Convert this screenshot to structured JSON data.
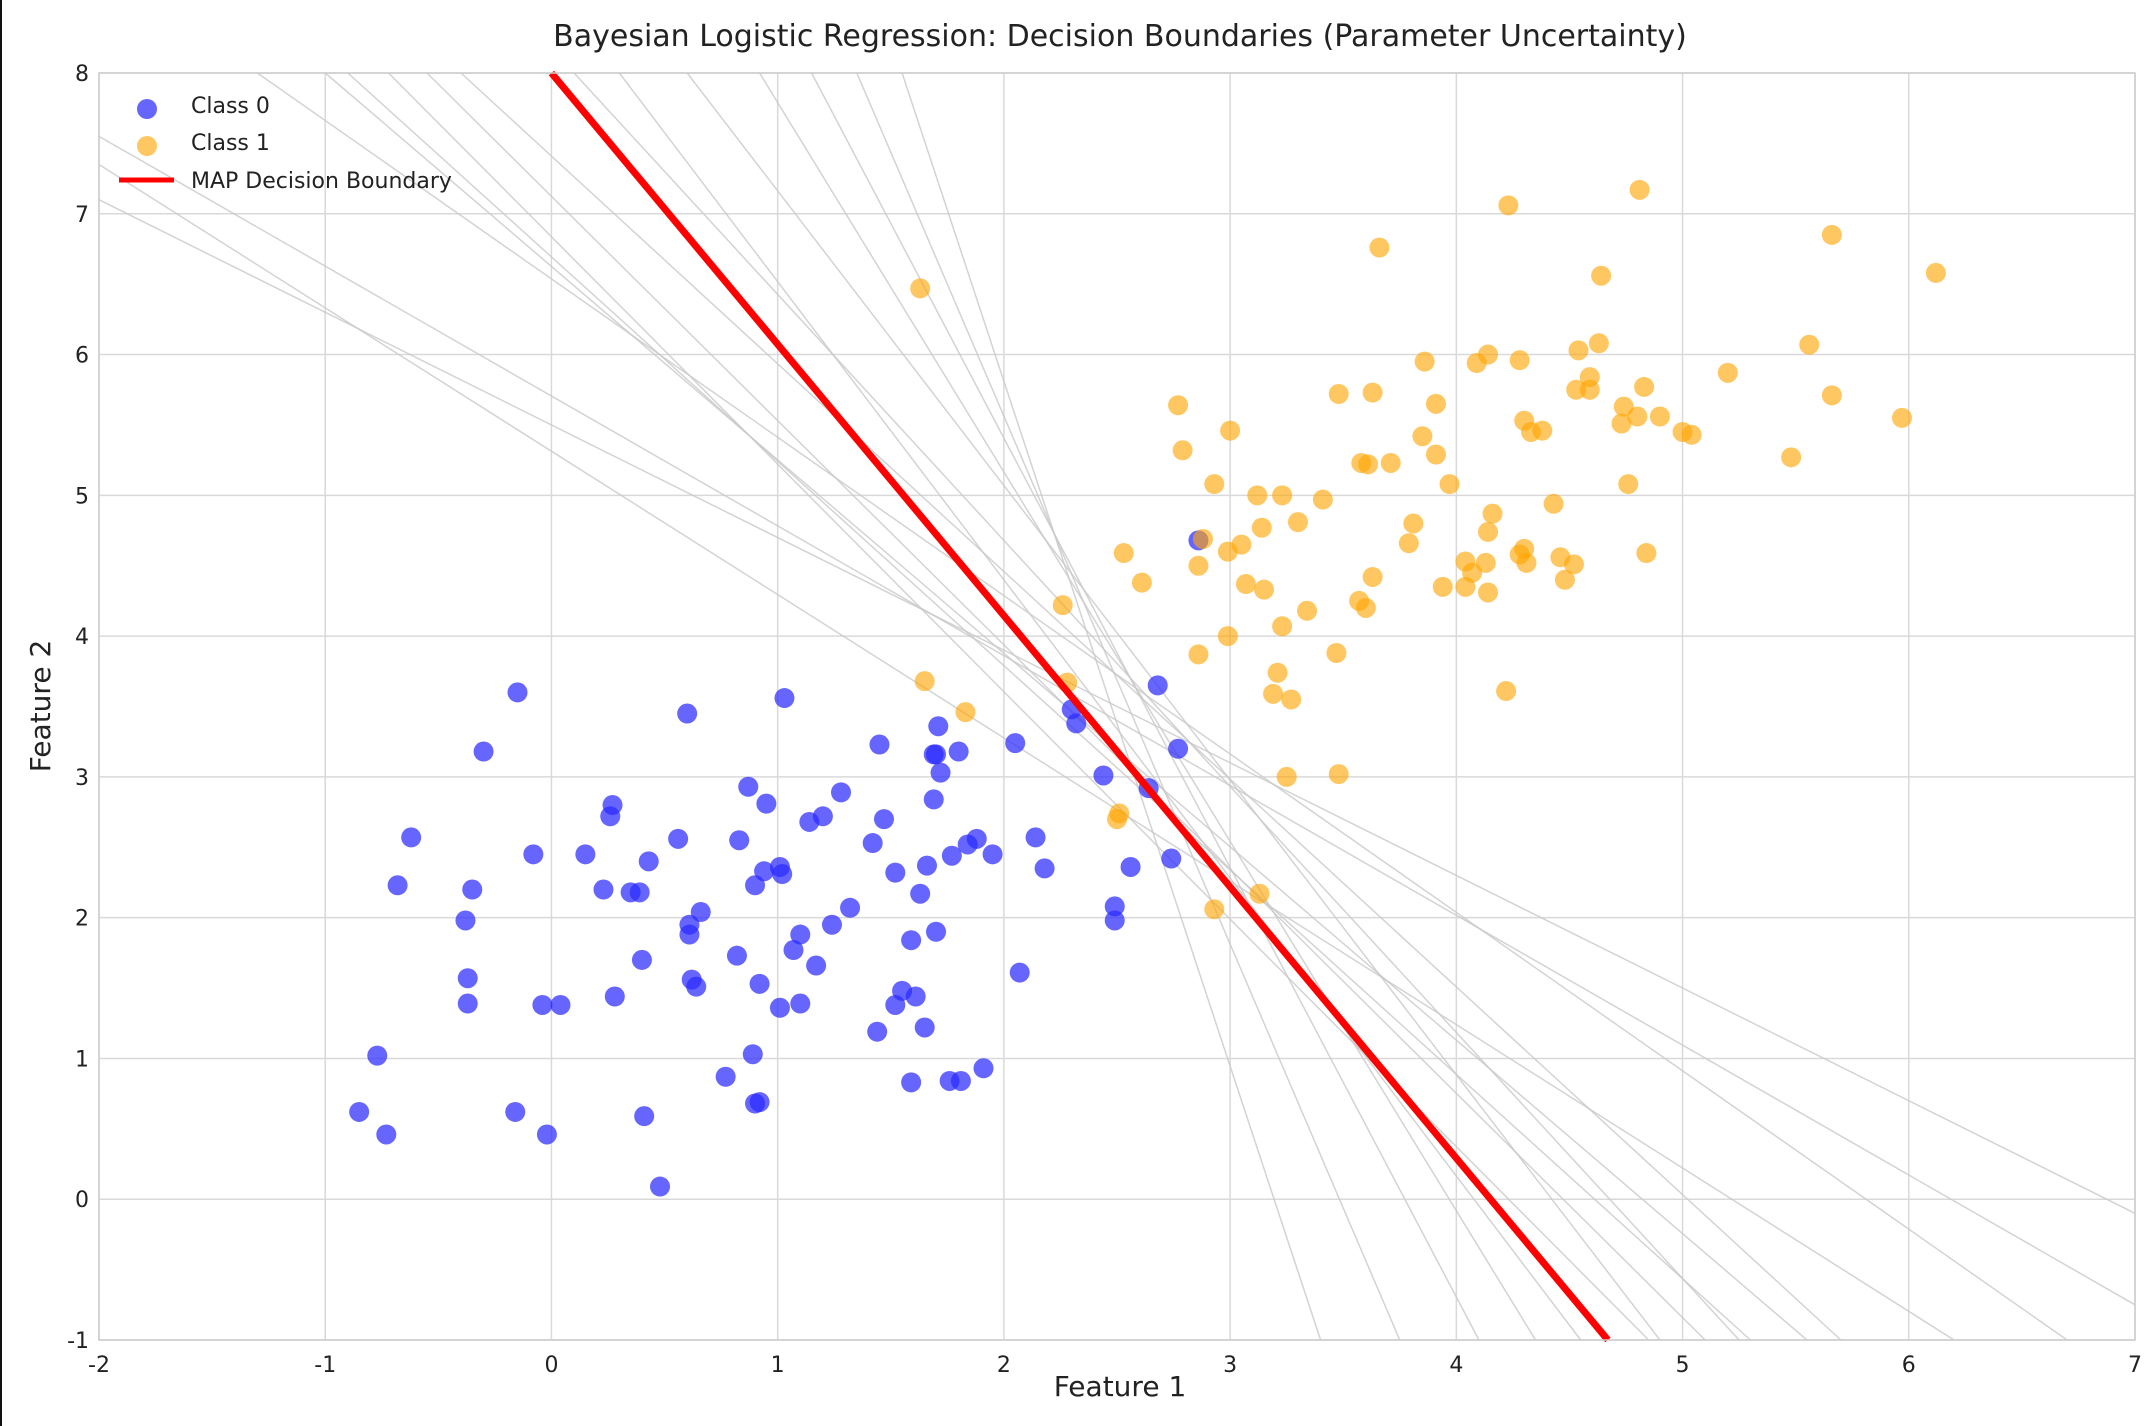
{
  "chart_data": {
    "type": "scatter",
    "title": "Bayesian Logistic Regression: Decision Boundaries (Parameter Uncertainty)",
    "xlabel": "Feature 1",
    "ylabel": "Feature 2",
    "xlim": [
      -2,
      7
    ],
    "ylim": [
      -1,
      8
    ],
    "xticks": [
      -2,
      -1,
      0,
      1,
      2,
      3,
      4,
      5,
      6,
      7
    ],
    "yticks": [
      -1,
      0,
      1,
      2,
      3,
      4,
      5,
      6,
      7,
      8
    ],
    "grid": true,
    "legend_position": "top-left",
    "colors": {
      "class0": "#2b2bff",
      "class1": "#ffa500",
      "map_boundary": "#ff0000",
      "sample_boundary": "#c8c8c8",
      "grid": "#d9d9d9"
    },
    "series": [
      {
        "name": "Class 0",
        "kind": "scatter",
        "points": [
          [
            -0.15,
            3.6
          ],
          [
            -0.3,
            3.18
          ],
          [
            0.6,
            3.45
          ],
          [
            1.03,
            3.56
          ],
          [
            -0.62,
            2.57
          ],
          [
            -0.68,
            2.23
          ],
          [
            -0.35,
            2.2
          ],
          [
            -0.38,
            1.98
          ],
          [
            -0.37,
            1.57
          ],
          [
            -0.37,
            1.39
          ],
          [
            -0.08,
            2.45
          ],
          [
            0.15,
            2.45
          ],
          [
            0.27,
            2.8
          ],
          [
            0.26,
            2.72
          ],
          [
            0.23,
            2.2
          ],
          [
            0.35,
            2.18
          ],
          [
            0.39,
            2.18
          ],
          [
            0.43,
            2.4
          ],
          [
            0.4,
            1.7
          ],
          [
            0.28,
            1.44
          ],
          [
            -0.04,
            1.38
          ],
          [
            0.04,
            1.38
          ],
          [
            -0.77,
            1.02
          ],
          [
            -0.85,
            0.62
          ],
          [
            -0.73,
            0.46
          ],
          [
            -0.16,
            0.62
          ],
          [
            -0.02,
            0.46
          ],
          [
            0.41,
            0.59
          ],
          [
            0.48,
            0.09
          ],
          [
            0.56,
            2.56
          ],
          [
            0.61,
            1.95
          ],
          [
            0.61,
            1.88
          ],
          [
            0.66,
            2.04
          ],
          [
            0.62,
            1.56
          ],
          [
            0.64,
            1.51
          ],
          [
            0.77,
            0.87
          ],
          [
            0.82,
            1.73
          ],
          [
            0.83,
            2.55
          ],
          [
            0.87,
            2.93
          ],
          [
            0.95,
            2.81
          ],
          [
            0.9,
            2.23
          ],
          [
            0.94,
            2.33
          ],
          [
            1.01,
            2.36
          ],
          [
            1.02,
            2.31
          ],
          [
            0.92,
            1.53
          ],
          [
            0.89,
            1.03
          ],
          [
            0.9,
            0.68
          ],
          [
            0.92,
            0.69
          ],
          [
            1.01,
            1.36
          ],
          [
            1.07,
            1.77
          ],
          [
            1.1,
            1.88
          ],
          [
            1.1,
            1.39
          ],
          [
            1.14,
            2.68
          ],
          [
            1.17,
            1.66
          ],
          [
            1.2,
            2.72
          ],
          [
            1.24,
            1.95
          ],
          [
            1.28,
            2.89
          ],
          [
            1.32,
            2.07
          ],
          [
            1.42,
            2.53
          ],
          [
            1.45,
            3.23
          ],
          [
            1.47,
            2.7
          ],
          [
            1.52,
            2.32
          ],
          [
            1.44,
            1.19
          ],
          [
            1.52,
            1.38
          ],
          [
            1.55,
            1.48
          ],
          [
            1.59,
            1.84
          ],
          [
            1.61,
            1.44
          ],
          [
            1.63,
            2.17
          ],
          [
            1.66,
            2.37
          ],
          [
            1.65,
            1.22
          ],
          [
            1.59,
            0.83
          ],
          [
            1.69,
            2.84
          ],
          [
            1.7,
            1.9
          ],
          [
            1.69,
            3.16
          ],
          [
            1.71,
            3.36
          ],
          [
            1.72,
            3.03
          ],
          [
            1.7,
            3.16
          ],
          [
            1.77,
            2.44
          ],
          [
            1.8,
            3.18
          ],
          [
            1.84,
            2.52
          ],
          [
            1.88,
            2.56
          ],
          [
            1.76,
            0.84
          ],
          [
            1.81,
            0.84
          ],
          [
            1.91,
            0.93
          ],
          [
            1.95,
            2.45
          ],
          [
            2.05,
            3.24
          ],
          [
            2.07,
            1.61
          ],
          [
            2.14,
            2.57
          ],
          [
            2.18,
            2.35
          ],
          [
            2.3,
            3.48
          ],
          [
            2.32,
            3.38
          ],
          [
            2.44,
            3.01
          ],
          [
            2.49,
            2.08
          ],
          [
            2.49,
            1.98
          ],
          [
            2.56,
            2.36
          ],
          [
            2.64,
            2.92
          ],
          [
            2.68,
            3.65
          ],
          [
            2.74,
            2.42
          ],
          [
            2.77,
            3.2
          ],
          [
            2.86,
            4.68
          ]
        ]
      },
      {
        "name": "Class 1",
        "kind": "scatter",
        "points": [
          [
            1.63,
            6.47
          ],
          [
            1.65,
            3.68
          ],
          [
            1.83,
            3.46
          ],
          [
            2.26,
            4.22
          ],
          [
            2.28,
            3.67
          ],
          [
            2.5,
            2.7
          ],
          [
            2.51,
            2.74
          ],
          [
            2.53,
            4.59
          ],
          [
            2.61,
            4.38
          ],
          [
            2.77,
            5.64
          ],
          [
            2.79,
            5.32
          ],
          [
            2.86,
            4.5
          ],
          [
            2.86,
            3.87
          ],
          [
            2.88,
            4.69
          ],
          [
            2.93,
            5.08
          ],
          [
            2.99,
            4.6
          ],
          [
            3.0,
            5.46
          ],
          [
            2.99,
            4.0
          ],
          [
            3.05,
            4.65
          ],
          [
            3.07,
            4.37
          ],
          [
            3.12,
            5.0
          ],
          [
            3.14,
            4.77
          ],
          [
            3.15,
            4.33
          ],
          [
            3.19,
            3.59
          ],
          [
            3.21,
            3.74
          ],
          [
            3.23,
            5.0
          ],
          [
            3.23,
            4.07
          ],
          [
            3.25,
            3.0
          ],
          [
            3.27,
            3.55
          ],
          [
            3.3,
            4.81
          ],
          [
            3.34,
            4.18
          ],
          [
            3.41,
            4.97
          ],
          [
            3.47,
            3.88
          ],
          [
            3.48,
            5.72
          ],
          [
            3.48,
            3.02
          ],
          [
            3.57,
            4.25
          ],
          [
            3.58,
            5.23
          ],
          [
            3.61,
            5.22
          ],
          [
            3.6,
            4.2
          ],
          [
            3.63,
            4.42
          ],
          [
            3.63,
            5.73
          ],
          [
            3.66,
            6.76
          ],
          [
            3.71,
            5.23
          ],
          [
            3.79,
            4.66
          ],
          [
            3.81,
            4.8
          ],
          [
            3.85,
            5.42
          ],
          [
            3.86,
            5.95
          ],
          [
            3.91,
            5.65
          ],
          [
            3.91,
            5.29
          ],
          [
            3.94,
            4.35
          ],
          [
            3.97,
            5.08
          ],
          [
            4.04,
            4.53
          ],
          [
            4.04,
            4.35
          ],
          [
            4.07,
            4.45
          ],
          [
            4.09,
            5.94
          ],
          [
            4.14,
            6.0
          ],
          [
            4.14,
            4.74
          ],
          [
            4.13,
            4.52
          ],
          [
            4.14,
            4.31
          ],
          [
            4.16,
            4.87
          ],
          [
            4.22,
            3.61
          ],
          [
            4.23,
            7.06
          ],
          [
            4.28,
            5.96
          ],
          [
            4.28,
            4.58
          ],
          [
            4.3,
            5.53
          ],
          [
            4.3,
            4.62
          ],
          [
            4.31,
            4.52
          ],
          [
            4.33,
            5.45
          ],
          [
            4.38,
            5.46
          ],
          [
            4.43,
            4.94
          ],
          [
            4.46,
            4.56
          ],
          [
            4.48,
            4.4
          ],
          [
            4.52,
            4.51
          ],
          [
            4.54,
            6.03
          ],
          [
            4.53,
            5.75
          ],
          [
            4.59,
            5.84
          ],
          [
            4.59,
            5.75
          ],
          [
            4.63,
            6.08
          ],
          [
            4.64,
            6.56
          ],
          [
            4.73,
            5.51
          ],
          [
            4.74,
            5.63
          ],
          [
            4.76,
            5.08
          ],
          [
            4.8,
            5.56
          ],
          [
            4.81,
            7.17
          ],
          [
            4.83,
            5.77
          ],
          [
            4.84,
            4.59
          ],
          [
            4.9,
            5.56
          ],
          [
            5.0,
            5.45
          ],
          [
            5.04,
            5.43
          ],
          [
            5.2,
            5.87
          ],
          [
            5.48,
            5.27
          ],
          [
            5.56,
            6.07
          ],
          [
            5.66,
            6.85
          ],
          [
            5.66,
            5.71
          ],
          [
            5.97,
            5.55
          ],
          [
            6.12,
            6.58
          ],
          [
            2.93,
            2.06
          ],
          [
            3.13,
            2.17
          ]
        ]
      },
      {
        "name": "MAP Decision Boundary",
        "kind": "line",
        "points": [
          [
            0.0,
            8.0
          ],
          [
            4.67,
            -1.0
          ]
        ]
      }
    ],
    "sample_boundaries": [
      [
        [
          -0.9,
          8.0
        ],
        [
          5.3,
          -1.0
        ]
      ],
      [
        [
          -0.4,
          8.0
        ],
        [
          5.7,
          -1.0
        ]
      ],
      [
        [
          -0.72,
          8.0
        ],
        [
          4.85,
          -1.0
        ]
      ],
      [
        [
          -0.55,
          8.0
        ],
        [
          5.1,
          -1.0
        ]
      ],
      [
        [
          0.3,
          8.0
        ],
        [
          4.55,
          -1.0
        ]
      ],
      [
        [
          0.6,
          8.0
        ],
        [
          4.9,
          -1.0
        ]
      ],
      [
        [
          0.92,
          8.0
        ],
        [
          4.35,
          -1.0
        ]
      ],
      [
        [
          1.15,
          8.0
        ],
        [
          4.1,
          -1.0
        ]
      ],
      [
        [
          1.35,
          8.0
        ],
        [
          3.75,
          -1.0
        ]
      ],
      [
        [
          1.55,
          8.0
        ],
        [
          3.4,
          -1.0
        ]
      ],
      [
        [
          -2.0,
          7.35
        ],
        [
          6.2,
          -1.0
        ]
      ],
      [
        [
          -2.0,
          7.1
        ],
        [
          7.0,
          -0.1
        ]
      ],
      [
        [
          -2.0,
          7.55
        ],
        [
          7.0,
          -0.75
        ]
      ],
      [
        [
          -1.3,
          8.0
        ],
        [
          6.7,
          -1.0
        ]
      ],
      [
        [
          -1.0,
          8.0
        ],
        [
          5.55,
          -1.0
        ]
      ],
      [
        [
          0.1,
          8.0
        ],
        [
          5.25,
          -1.0
        ]
      ]
    ]
  }
}
